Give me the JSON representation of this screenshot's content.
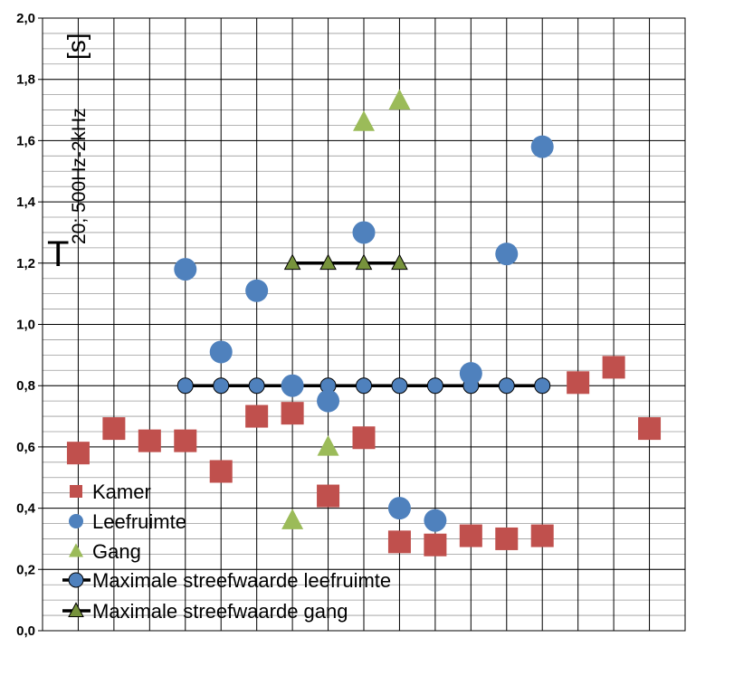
{
  "chart_data": {
    "type": "scatter",
    "ylabel": {
      "symbol": "T",
      "subscript": "20; 500Hz-2kHz",
      "unit": "[s]"
    },
    "ylim": [
      0.0,
      2.0
    ],
    "yticks": [
      "0,0",
      "0,2",
      "0,4",
      "0,6",
      "0,8",
      "1,0",
      "1,2",
      "1,4",
      "1,6",
      "1,8",
      "2,0"
    ],
    "x_range": [
      0,
      17
    ],
    "grid": "major and minor gridlines",
    "legend_placement": "bottom-left inside plot",
    "series": [
      {
        "name": "Kamer",
        "marker": "square",
        "color": "#c0504d",
        "points": [
          [
            1,
            0.58
          ],
          [
            2,
            0.66
          ],
          [
            3,
            0.62
          ],
          [
            4,
            0.62
          ],
          [
            5,
            0.52
          ],
          [
            6,
            0.7
          ],
          [
            7,
            0.71
          ],
          [
            8,
            0.44
          ],
          [
            9,
            0.63
          ],
          [
            10,
            0.29
          ],
          [
            11,
            0.28
          ],
          [
            12,
            0.31
          ],
          [
            13,
            0.3
          ],
          [
            14,
            0.31
          ],
          [
            15,
            0.81
          ],
          [
            16,
            0.86
          ],
          [
            17,
            0.66
          ]
        ]
      },
      {
        "name": "Leefruimte",
        "marker": "circle",
        "color": "#4f81bd",
        "points": [
          [
            4,
            1.18
          ],
          [
            5,
            0.91
          ],
          [
            6,
            1.11
          ],
          [
            7,
            0.8
          ],
          [
            8,
            0.75
          ],
          [
            9,
            1.3
          ],
          [
            10,
            0.4
          ],
          [
            11,
            0.36
          ],
          [
            12,
            0.84
          ],
          [
            13,
            1.23
          ],
          [
            14,
            1.58
          ]
        ]
      },
      {
        "name": "Gang",
        "marker": "triangle",
        "color": "#9bbb59",
        "points": [
          [
            7,
            0.36
          ],
          [
            8,
            0.6
          ],
          [
            9,
            1.66
          ],
          [
            10,
            1.73
          ]
        ]
      },
      {
        "name": "Maximale streefwaarde leefruimte",
        "marker": "circle-line",
        "color": "#4f81bd",
        "points": [
          [
            4,
            0.8
          ],
          [
            5,
            0.8
          ],
          [
            6,
            0.8
          ],
          [
            7,
            0.8
          ],
          [
            8,
            0.8
          ],
          [
            9,
            0.8
          ],
          [
            10,
            0.8
          ],
          [
            11,
            0.8
          ],
          [
            12,
            0.8
          ],
          [
            13,
            0.8
          ],
          [
            14,
            0.8
          ]
        ]
      },
      {
        "name": "Maximale streefwaarde gang",
        "marker": "triangle-line",
        "color": "#77933c",
        "points": [
          [
            7,
            1.2
          ],
          [
            8,
            1.2
          ],
          [
            9,
            1.2
          ],
          [
            10,
            1.2
          ]
        ]
      }
    ]
  }
}
